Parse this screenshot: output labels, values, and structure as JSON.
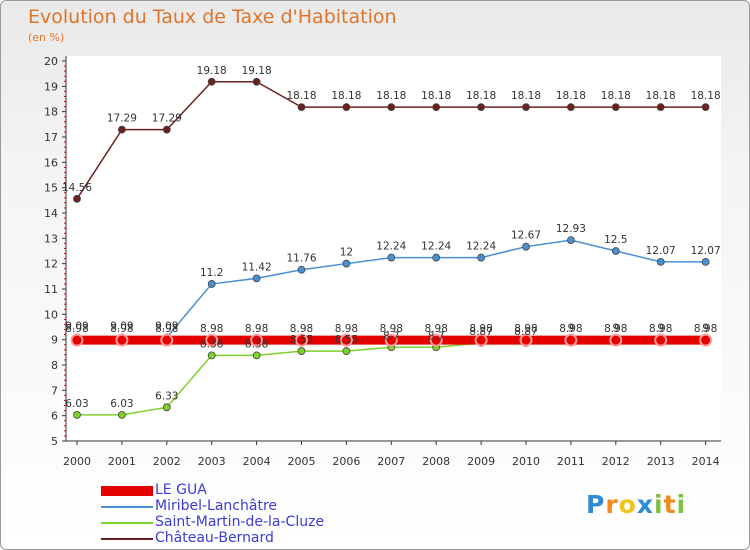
{
  "chart_data": {
    "type": "line",
    "title": "Evolution du Taux de Taxe d'Habitation",
    "unit_label": "(en %)",
    "xlabel": "",
    "ylabel": "",
    "x": [
      "2000",
      "2001",
      "2002",
      "2003",
      "2004",
      "2005",
      "2006",
      "2007",
      "2008",
      "2009",
      "2010",
      "2011",
      "2012",
      "2013",
      "2014"
    ],
    "ylim": [
      5,
      20
    ],
    "yticks": [
      "5",
      "6",
      "7",
      "8",
      "9",
      "10",
      "11",
      "12",
      "13",
      "14",
      "15",
      "16",
      "17",
      "18",
      "19",
      "20"
    ],
    "grid": false,
    "series": [
      {
        "name": "LE GUA",
        "color": "#e50000",
        "values": [
          8.98,
          8.98,
          8.98,
          8.98,
          8.98,
          8.98,
          8.98,
          8.98,
          8.98,
          8.98,
          8.98,
          8.98,
          8.98,
          8.98,
          8.98
        ],
        "labels": [
          "8.98",
          "8.98",
          "8.98",
          "8.98",
          "8.98",
          "8.98",
          "8.98",
          "8.98",
          "8.98",
          "8.98",
          "8.98",
          "8.98",
          "8.98",
          "8.98",
          "8.98"
        ]
      },
      {
        "name": "Miribel-Lanchâtre",
        "color": "#4a90d0",
        "values": [
          9.09,
          9.09,
          9.09,
          11.2,
          11.42,
          11.76,
          12,
          12.24,
          12.24,
          12.24,
          12.67,
          12.93,
          12.5,
          12.07,
          12.07
        ],
        "labels": [
          "9.09",
          "9.09",
          "9.09",
          "11.2",
          "11.42",
          "11.76",
          "12",
          "12.24",
          "12.24",
          "12.24",
          "12.67",
          "12.93",
          "12.5",
          "12.07",
          "12.07"
        ]
      },
      {
        "name": "Saint-Martin-de-la-Cluze",
        "color": "#7fd02a",
        "values": [
          6.03,
          6.03,
          6.33,
          8.38,
          8.38,
          8.55,
          8.55,
          8.7,
          8.7,
          8.87,
          8.87,
          9,
          9,
          9,
          9
        ],
        "labels": [
          "6.03",
          "6.03",
          "6.33",
          "8.38",
          "8.38",
          "8.55",
          "8.55",
          "8.7",
          "8.7",
          "8.87",
          "8.87",
          "9",
          "9",
          "9",
          "9"
        ]
      },
      {
        "name": "Château-Bernard",
        "color": "#6b2020",
        "values": [
          14.56,
          17.29,
          17.29,
          19.18,
          19.18,
          18.18,
          18.18,
          18.18,
          18.18,
          18.18,
          18.18,
          18.18,
          18.18,
          18.18,
          18.18
        ],
        "labels": [
          "14.56",
          "17.29",
          "17.29",
          "19.18",
          "19.18",
          "18.18",
          "18.18",
          "18.18",
          "18.18",
          "18.18",
          "18.18",
          "18.18",
          "18.18",
          "18.18",
          "18.18"
        ]
      }
    ]
  },
  "logo": {
    "letters": [
      "P",
      "r",
      "o",
      "x",
      "i",
      "t",
      "i"
    ]
  }
}
